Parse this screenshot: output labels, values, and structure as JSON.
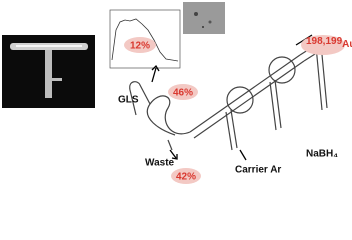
{
  "labels": {
    "gls": "GLS",
    "waste": "Waste",
    "carrier": "Carrier Ar",
    "reductant": "NaBH₄",
    "isotope": "198,199",
    "element": "Au"
  },
  "yields": {
    "signal": "12%",
    "gls": "46%",
    "waste": "42%"
  }
}
